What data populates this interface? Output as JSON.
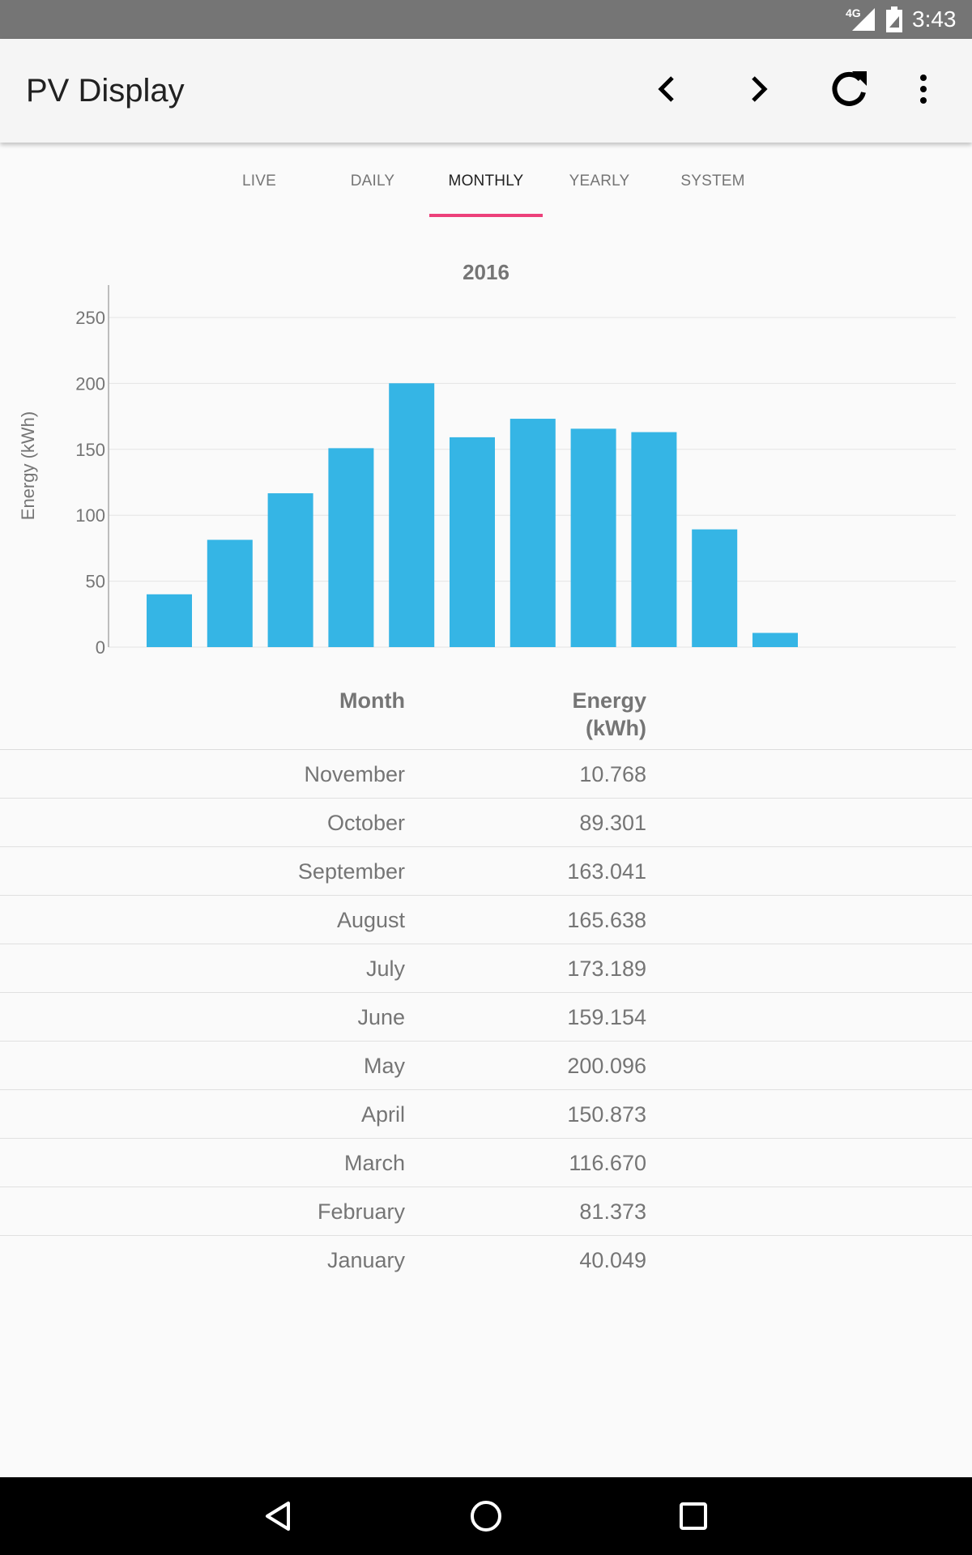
{
  "status_bar": {
    "network": "4G",
    "time": "3:43"
  },
  "app_bar": {
    "title": "PV Display",
    "actions": [
      "chevron-left-icon",
      "chevron-right-icon",
      "refresh-icon",
      "more-vert-icon"
    ]
  },
  "tabs": [
    {
      "label": "LIVE",
      "active": false
    },
    {
      "label": "DAILY",
      "active": false
    },
    {
      "label": "MONTHLY",
      "active": true
    },
    {
      "label": "YEARLY",
      "active": false
    },
    {
      "label": "SYSTEM",
      "active": false
    }
  ],
  "colors": {
    "accent": "#ec407a",
    "bar": "#35b5e5"
  },
  "chart_data": {
    "type": "bar",
    "title": "2016",
    "xlabel": "",
    "ylabel": "Energy (kWh)",
    "ylim": [
      0,
      250
    ],
    "yticks": [
      "0",
      "50",
      "100",
      "150",
      "200",
      "250"
    ],
    "grid": true,
    "categories": [
      "January",
      "February",
      "March",
      "April",
      "May",
      "June",
      "July",
      "August",
      "September",
      "October",
      "November"
    ],
    "values": [
      40.049,
      81.373,
      116.67,
      150.873,
      200.096,
      159.154,
      173.189,
      165.638,
      163.041,
      89.301,
      10.768
    ]
  },
  "table": {
    "headers": {
      "month": "Month",
      "energy_line1": "Energy",
      "energy_line2": "(kWh)"
    },
    "rows": [
      {
        "month": "November",
        "energy": "10.768"
      },
      {
        "month": "October",
        "energy": "89.301"
      },
      {
        "month": "September",
        "energy": "163.041"
      },
      {
        "month": "August",
        "energy": "165.638"
      },
      {
        "month": "July",
        "energy": "173.189"
      },
      {
        "month": "June",
        "energy": "159.154"
      },
      {
        "month": "May",
        "energy": "200.096"
      },
      {
        "month": "April",
        "energy": "150.873"
      },
      {
        "month": "March",
        "energy": "116.670"
      },
      {
        "month": "February",
        "energy": "81.373"
      },
      {
        "month": "January",
        "energy": "40.049"
      }
    ]
  },
  "nav_bar": [
    "back-icon",
    "home-icon",
    "recents-icon"
  ]
}
